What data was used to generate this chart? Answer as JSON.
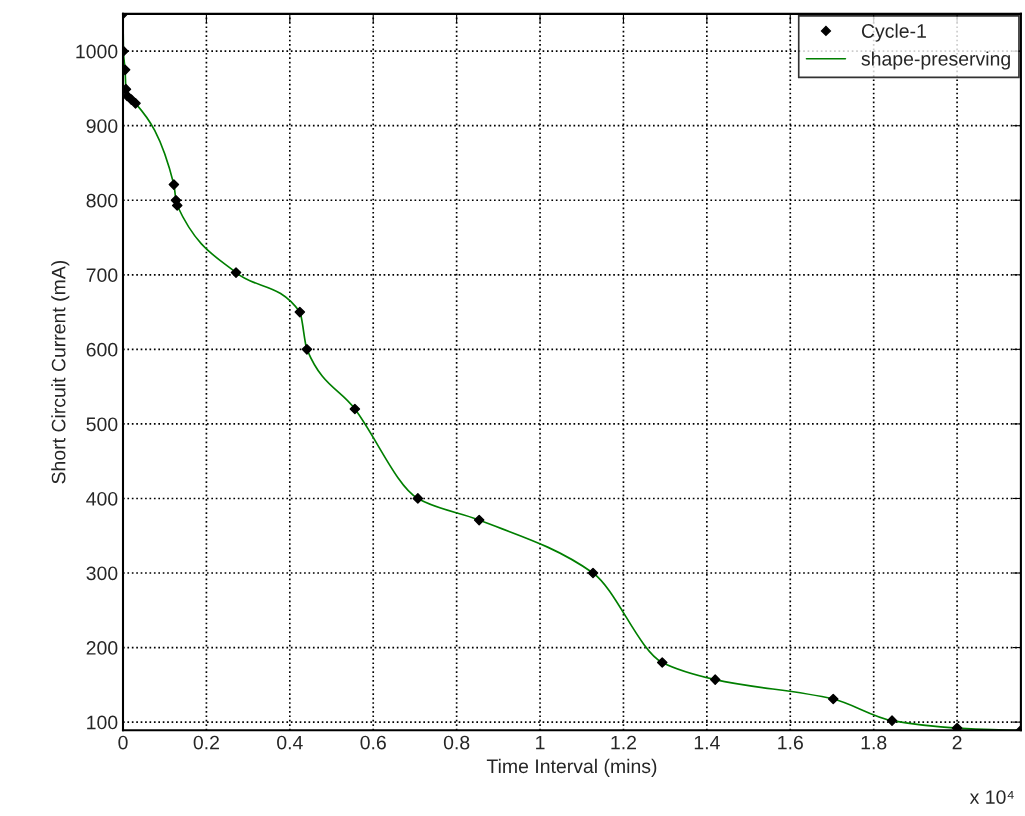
{
  "chart_data": {
    "type": "scatter",
    "xlabel": "Time Interval (mins)",
    "ylabel": "Short Circuit Current (mA)",
    "annotations": [
      "x 10⁴"
    ],
    "xlim": [
      0,
      2.153
    ],
    "ylim": [
      89,
      1050
    ],
    "xticks": [
      0,
      0.2,
      0.4,
      0.6,
      0.8,
      1,
      1.2,
      1.4,
      1.6,
      1.8,
      2
    ],
    "yticks": [
      100,
      200,
      300,
      400,
      500,
      600,
      700,
      800,
      900,
      1000
    ],
    "grid": true,
    "legend": "top right",
    "series": [
      {
        "name": "Cycle-1",
        "marker": "diamond",
        "color": "#000000",
        "x": [
          0,
          0.001,
          0.005,
          0.007,
          0.01,
          0.02,
          0.03,
          0.122,
          0.127,
          0.13,
          0.271,
          0.424,
          0.441,
          0.556,
          0.707,
          0.854,
          1.127,
          1.293,
          1.42,
          1.703,
          1.844,
          2.0,
          2.153
        ],
        "values": [
          1050,
          1000,
          975,
          949,
          940,
          935,
          930,
          821,
          800,
          793,
          703,
          650,
          600,
          520,
          400,
          371,
          300,
          180,
          157,
          131,
          102,
          92,
          89
        ]
      },
      {
        "name": "shape-preserving",
        "type": "line",
        "line_style": "solid",
        "color": "#007f00",
        "x": [
          0,
          0.001,
          0.005,
          0.007,
          0.01,
          0.02,
          0.03,
          0.122,
          0.127,
          0.13,
          0.271,
          0.424,
          0.441,
          0.556,
          0.707,
          0.854,
          1.127,
          1.293,
          1.42,
          1.703,
          1.844,
          2.0,
          2.153
        ],
        "values": [
          1050,
          1000,
          975,
          949,
          940,
          935,
          930,
          821,
          800,
          793,
          703,
          650,
          600,
          520,
          400,
          371,
          300,
          180,
          157,
          131,
          102,
          92,
          89
        ]
      }
    ]
  }
}
